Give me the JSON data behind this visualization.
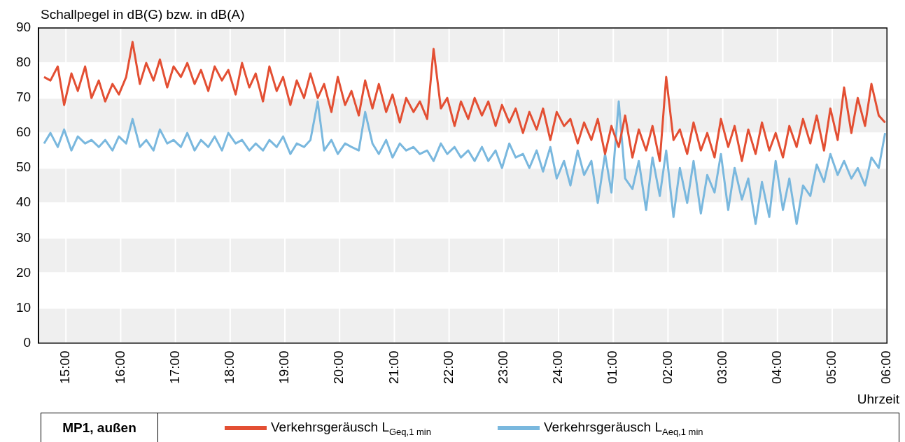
{
  "chart_data": {
    "type": "line",
    "ylabel": "Schallpegel in dB(G) bzw. in dB(A)",
    "xlabel": "Uhrzeit",
    "annotations": [
      "MP1, außen"
    ],
    "legend": "bottom",
    "grid": true,
    "marker": "none",
    "line_style": "solid",
    "xlim": [
      "2000-01-01T14:30",
      "2000-01-02T06:00"
    ],
    "ylim": [
      0,
      90
    ],
    "yticks": [
      0,
      10,
      20,
      30,
      40,
      50,
      60,
      70,
      80,
      90
    ],
    "xticks": [
      {
        "value": "2000-01-01T15:00",
        "label": "15:00"
      },
      {
        "value": "2000-01-01T16:00",
        "label": "16:00"
      },
      {
        "value": "2000-01-01T17:00",
        "label": "17:00"
      },
      {
        "value": "2000-01-01T18:00",
        "label": "18:00"
      },
      {
        "value": "2000-01-01T19:00",
        "label": "19:00"
      },
      {
        "value": "2000-01-01T20:00",
        "label": "20:00"
      },
      {
        "value": "2000-01-01T21:00",
        "label": "21:00"
      },
      {
        "value": "2000-01-01T22:00",
        "label": "22:00"
      },
      {
        "value": "2000-01-01T23:00",
        "label": "23:00"
      },
      {
        "value": "2000-01-02T00:00",
        "label": "24:00"
      },
      {
        "value": "2000-01-02T01:00",
        "label": "01:00"
      },
      {
        "value": "2000-01-02T02:00",
        "label": "02:00"
      },
      {
        "value": "2000-01-02T03:00",
        "label": "03:00"
      },
      {
        "value": "2000-01-02T04:00",
        "label": "04:00"
      },
      {
        "value": "2000-01-02T05:00",
        "label": "05:00"
      },
      {
        "value": "2000-01-02T06:00",
        "label": "06:00"
      }
    ],
    "x": [
      "2000-01-01T14:36",
      "2000-01-01T14:43",
      "2000-01-01T14:51",
      "2000-01-01T14:58",
      "2000-01-01T15:06",
      "2000-01-01T15:13",
      "2000-01-01T15:21",
      "2000-01-01T15:28",
      "2000-01-01T15:36",
      "2000-01-01T15:43",
      "2000-01-01T15:51",
      "2000-01-01T15:58",
      "2000-01-01T16:06",
      "2000-01-01T16:13",
      "2000-01-01T16:21",
      "2000-01-01T16:28",
      "2000-01-01T16:36",
      "2000-01-01T16:43",
      "2000-01-01T16:51",
      "2000-01-01T16:58",
      "2000-01-01T17:06",
      "2000-01-01T17:13",
      "2000-01-01T17:21",
      "2000-01-01T17:28",
      "2000-01-01T17:36",
      "2000-01-01T17:43",
      "2000-01-01T17:51",
      "2000-01-01T17:58",
      "2000-01-01T18:06",
      "2000-01-01T18:13",
      "2000-01-01T18:21",
      "2000-01-01T18:28",
      "2000-01-01T18:36",
      "2000-01-01T18:43",
      "2000-01-01T18:51",
      "2000-01-01T18:58",
      "2000-01-01T19:06",
      "2000-01-01T19:13",
      "2000-01-01T19:21",
      "2000-01-01T19:28",
      "2000-01-01T19:36",
      "2000-01-01T19:43",
      "2000-01-01T19:51",
      "2000-01-01T19:58",
      "2000-01-01T20:06",
      "2000-01-01T20:13",
      "2000-01-01T20:21",
      "2000-01-01T20:28",
      "2000-01-01T20:36",
      "2000-01-01T20:43",
      "2000-01-01T20:51",
      "2000-01-01T20:58",
      "2000-01-01T21:06",
      "2000-01-01T21:13",
      "2000-01-01T21:21",
      "2000-01-01T21:28",
      "2000-01-01T21:36",
      "2000-01-01T21:43",
      "2000-01-01T21:51",
      "2000-01-01T21:58",
      "2000-01-01T22:06",
      "2000-01-01T22:13",
      "2000-01-01T22:21",
      "2000-01-01T22:28",
      "2000-01-01T22:36",
      "2000-01-01T22:43",
      "2000-01-01T22:51",
      "2000-01-01T22:58",
      "2000-01-01T23:06",
      "2000-01-01T23:13",
      "2000-01-01T23:21",
      "2000-01-01T23:28",
      "2000-01-01T23:36",
      "2000-01-01T23:43",
      "2000-01-01T23:51",
      "2000-01-01T23:58",
      "2000-01-02T00:06",
      "2000-01-02T00:13",
      "2000-01-02T00:21",
      "2000-01-02T00:28",
      "2000-01-02T00:36",
      "2000-01-02T00:43",
      "2000-01-02T00:51",
      "2000-01-02T00:58",
      "2000-01-02T01:06",
      "2000-01-02T01:13",
      "2000-01-02T01:21",
      "2000-01-02T01:28",
      "2000-01-02T01:36",
      "2000-01-02T01:43",
      "2000-01-02T01:51",
      "2000-01-02T01:58",
      "2000-01-02T02:06",
      "2000-01-02T02:13",
      "2000-01-02T02:21",
      "2000-01-02T02:28",
      "2000-01-02T02:36",
      "2000-01-02T02:43",
      "2000-01-02T02:51",
      "2000-01-02T02:58",
      "2000-01-02T03:06",
      "2000-01-02T03:13",
      "2000-01-02T03:21",
      "2000-01-02T03:28",
      "2000-01-02T03:36",
      "2000-01-02T03:43",
      "2000-01-02T03:51",
      "2000-01-02T03:58",
      "2000-01-02T04:06",
      "2000-01-02T04:13",
      "2000-01-02T04:21",
      "2000-01-02T04:28",
      "2000-01-02T04:36",
      "2000-01-02T04:43",
      "2000-01-02T04:51",
      "2000-01-02T04:58",
      "2000-01-02T05:06",
      "2000-01-02T05:13",
      "2000-01-02T05:21",
      "2000-01-02T05:28",
      "2000-01-02T05:36",
      "2000-01-02T05:43",
      "2000-01-02T05:51",
      "2000-01-02T05:58"
    ],
    "series": [
      {
        "name": "Verkehrsgeräusch L$_{Geq,1 min}$",
        "color": "#e34f33",
        "values": [
          76,
          75,
          79,
          68,
          77,
          72,
          79,
          70,
          75,
          69,
          74,
          71,
          76,
          86,
          74,
          80,
          75,
          81,
          73,
          79,
          76,
          80,
          74,
          78,
          72,
          79,
          75,
          78,
          71,
          80,
          73,
          77,
          69,
          79,
          72,
          76,
          68,
          75,
          70,
          77,
          70,
          74,
          66,
          76,
          68,
          72,
          65,
          75,
          67,
          74,
          66,
          71,
          63,
          70,
          66,
          69,
          64,
          84,
          67,
          70,
          62,
          69,
          64,
          70,
          65,
          69,
          62,
          68,
          63,
          67,
          60,
          66,
          61,
          67,
          58,
          66,
          62,
          64,
          57,
          63,
          58,
          64,
          54,
          62,
          56,
          65,
          53,
          61,
          55,
          62,
          52,
          76,
          58,
          61,
          54,
          63,
          55,
          60,
          53,
          64,
          56,
          62,
          52,
          61,
          54,
          63,
          55,
          60,
          53,
          62,
          56,
          64,
          57,
          65,
          55,
          67,
          58,
          73,
          60,
          70,
          62,
          74,
          65,
          63
        ]
      },
      {
        "name": "Verkehrsgeräusch L$_{Aeq,1 min}$",
        "color": "#7ab8de",
        "values": [
          57,
          60,
          56,
          61,
          55,
          59,
          57,
          58,
          56,
          58,
          55,
          59,
          57,
          64,
          56,
          58,
          55,
          61,
          57,
          58,
          56,
          60,
          55,
          58,
          56,
          59,
          55,
          60,
          57,
          58,
          55,
          57,
          55,
          58,
          56,
          59,
          54,
          57,
          56,
          58,
          69,
          55,
          58,
          54,
          57,
          56,
          55,
          66,
          57,
          54,
          58,
          53,
          57,
          55,
          56,
          54,
          55,
          52,
          57,
          54,
          56,
          53,
          55,
          52,
          56,
          52,
          55,
          50,
          57,
          53,
          54,
          50,
          55,
          49,
          56,
          47,
          52,
          45,
          55,
          48,
          52,
          40,
          54,
          43,
          69,
          47,
          44,
          52,
          38,
          53,
          42,
          55,
          36,
          50,
          40,
          52,
          37,
          48,
          43,
          54,
          38,
          50,
          41,
          47,
          34,
          46,
          36,
          52,
          38,
          47,
          34,
          45,
          42,
          51,
          46,
          54,
          48,
          52,
          47,
          50,
          45,
          53,
          50,
          60
        ]
      }
    ]
  }
}
